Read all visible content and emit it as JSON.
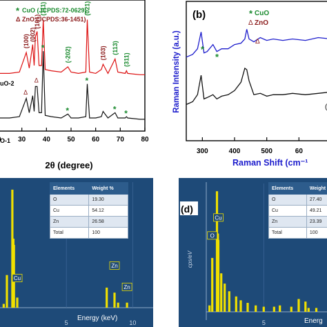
{
  "panel_a": {
    "legend": {
      "cuo": "CuO (JCPDS:72-0629)",
      "zno": "ZnO (JCPDS:36-1451)"
    },
    "sample_top": "uO-2",
    "sample_bottom": "O-1",
    "peak_labels": [
      "(100)",
      "(002)",
      "(101)",
      "(111)",
      "(-202)",
      "(021)",
      "(103)",
      "(113)",
      "(311)"
    ]
  },
  "panel_b": {
    "tag": "(b)",
    "legend": {
      "cuo": "CuO",
      "zno": "ZnO"
    },
    "trace_label": "("
  },
  "panel_c": {
    "table": {
      "headers": [
        "Elements",
        "Weight %"
      ],
      "rows": [
        [
          "O",
          "19.30"
        ],
        [
          "Cu",
          "54.12"
        ],
        [
          "Zn",
          "26.58"
        ],
        [
          "Total",
          "100"
        ]
      ]
    },
    "peak_tags": [
      "Cu",
      "Cu",
      "Zn",
      "Zn"
    ]
  },
  "panel_d": {
    "tag": "(d)",
    "table": {
      "headers": [
        "Elements",
        "Weight"
      ],
      "rows": [
        [
          "O",
          "27.40"
        ],
        [
          "Cu",
          "49.21"
        ],
        [
          "Zn",
          "23.39"
        ],
        [
          "Total",
          "100"
        ]
      ]
    },
    "peak_tags": [
      "Cu",
      "O",
      "Cu"
    ]
  },
  "colors": {
    "green": "#1a8a2e",
    "darkred": "#8b1a1a",
    "blue_trace": "#1c1ccc",
    "black_trace": "#111111",
    "eds_bg": "#1e4a78",
    "eds_peaks": "#f0e000"
  },
  "chart_data": [
    {
      "type": "line",
      "panel": "a",
      "xlabel": "2θ (degree)",
      "xlim": [
        20,
        80
      ],
      "xticks": [
        "20",
        "30",
        "40",
        "50",
        "60",
        "70",
        "80"
      ],
      "series": [
        {
          "name": "uO-2",
          "x": [
            20,
            25,
            29,
            31.8,
            33,
            34.4,
            35,
            35.5,
            36.2,
            37,
            38,
            38.7,
            39.5,
            42,
            46,
            48.7,
            50,
            53,
            56,
            56.6,
            57.5,
            60,
            62.3,
            63,
            65,
            67.9,
            69,
            72,
            72.5,
            73,
            78,
            80
          ],
          "y": [
            0.44,
            0.44,
            0.45,
            0.6,
            0.48,
            0.66,
            0.5,
            0.72,
            0.76,
            0.5,
            0.5,
            0.85,
            0.47,
            0.46,
            0.45,
            0.49,
            0.45,
            0.44,
            0.45,
            0.85,
            0.45,
            0.44,
            0.47,
            0.51,
            0.44,
            0.55,
            0.45,
            0.44,
            0.46,
            0.44,
            0.43,
            0.43
          ]
        },
        {
          "name": "O-1",
          "x": [
            20,
            25,
            29,
            31.8,
            33,
            34.4,
            35,
            35.5,
            36.2,
            37,
            38,
            38.7,
            39.5,
            42,
            46,
            48.7,
            50,
            53,
            56,
            56.6,
            57.5,
            60,
            62.3,
            63,
            65,
            67.9,
            69,
            72,
            72.5,
            73,
            78,
            80
          ],
          "y": [
            0.1,
            0.1,
            0.11,
            0.25,
            0.14,
            0.27,
            0.15,
            0.34,
            0.34,
            0.14,
            0.14,
            0.61,
            0.12,
            0.11,
            0.1,
            0.13,
            0.1,
            0.1,
            0.11,
            0.36,
            0.1,
            0.1,
            0.11,
            0.15,
            0.1,
            0.14,
            0.1,
            0.1,
            0.11,
            0.1,
            0.09,
            0.09
          ]
        }
      ]
    },
    {
      "type": "line",
      "panel": "b",
      "xlabel": "Raman Shift (cm⁻¹",
      "ylabel": "Raman Intensity (a.u.)",
      "xlim": [
        250,
        700
      ],
      "xticks": [
        "300",
        "400",
        "500",
        "60"
      ],
      "series": [
        {
          "x": [
            250,
            270,
            285,
            296,
            305,
            315,
            333,
            345,
            360,
            380,
            400,
            420,
            432,
            438,
            445,
            460,
            480,
            500,
            520,
            550,
            580,
            620,
            660,
            700
          ],
          "y": [
            0.6,
            0.62,
            0.66,
            0.78,
            0.63,
            0.64,
            0.69,
            0.64,
            0.66,
            0.66,
            0.69,
            0.7,
            0.73,
            0.8,
            0.73,
            0.71,
            0.74,
            0.72,
            0.73,
            0.72,
            0.73,
            0.72,
            0.74,
            0.73
          ]
        },
        {
          "x": [
            250,
            270,
            285,
            296,
            305,
            315,
            333,
            345,
            360,
            380,
            400,
            420,
            432,
            438,
            445,
            460,
            480,
            500,
            520,
            550,
            580,
            620,
            660,
            700
          ],
          "y": [
            0.26,
            0.28,
            0.33,
            0.47,
            0.3,
            0.31,
            0.33,
            0.3,
            0.32,
            0.33,
            0.36,
            0.42,
            0.52,
            0.51,
            0.43,
            0.33,
            0.34,
            0.32,
            0.33,
            0.33,
            0.34,
            0.33,
            0.34,
            0.35
          ]
        }
      ]
    },
    {
      "type": "bar",
      "panel": "c",
      "xlabel": "Energy (keV)",
      "xlim": [
        0,
        10.5
      ],
      "xticks": [
        "5",
        "10"
      ],
      "x": [
        0.28,
        0.52,
        0.93,
        1.01,
        1.05,
        1.3,
        8.04,
        8.63,
        8.9,
        9.57
      ],
      "values": [
        0.03,
        0.26,
        0.94,
        0.55,
        0.5,
        0.08,
        0.16,
        0.12,
        0.04,
        0.04
      ]
    },
    {
      "type": "bar",
      "panel": "d",
      "ylabel": "cps/eV",
      "xlabel": "Energ",
      "xlim": [
        0,
        10.5
      ],
      "xticks": [
        "5"
      ],
      "x": [
        0.28,
        0.52,
        0.93,
        1.01,
        1.05,
        1.3,
        1.6,
        2.0,
        2.6,
        3.0,
        3.6,
        4.3,
        5.0,
        5.9,
        6.4,
        7.4,
        8.04,
        8.63,
        8.9,
        9.57
      ],
      "values": [
        0.05,
        0.42,
        0.94,
        0.61,
        0.56,
        0.3,
        0.22,
        0.16,
        0.12,
        0.09,
        0.07,
        0.05,
        0.04,
        0.04,
        0.05,
        0.04,
        0.1,
        0.08,
        0.03,
        0.03
      ]
    }
  ]
}
